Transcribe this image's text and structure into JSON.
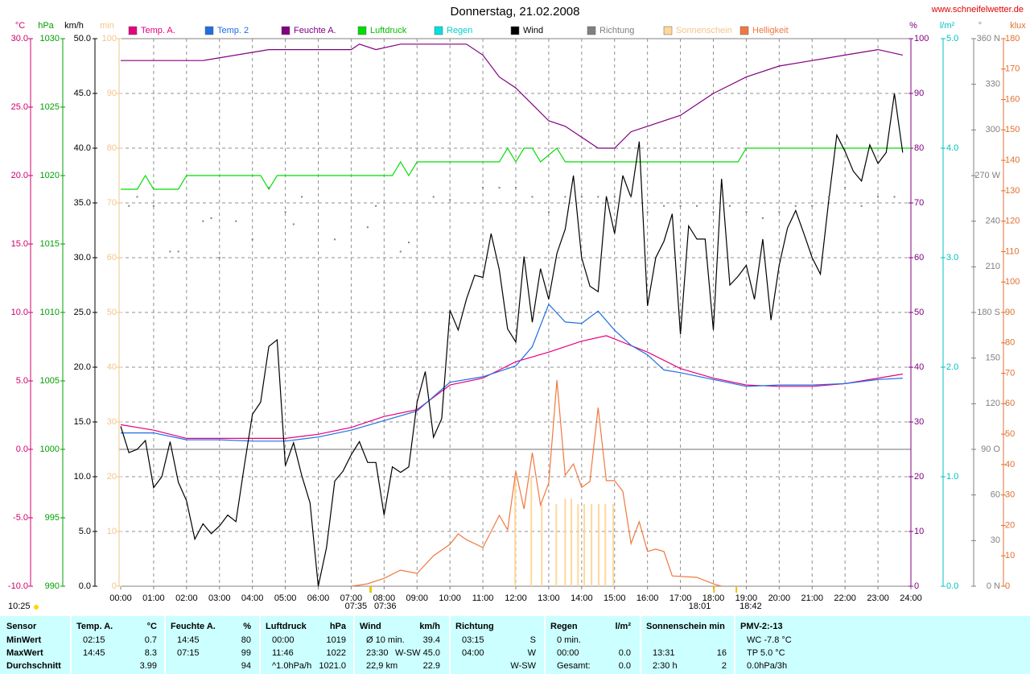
{
  "chart_data": {
    "type": "line",
    "title": "Donnerstag, 21.02.2008",
    "source": "www.schneifelwetter.de",
    "xlim": [
      0,
      24
    ],
    "xticks": [
      {
        "value": 0,
        "label": "00:00"
      },
      {
        "value": 1,
        "label": "01:00"
      },
      {
        "value": 2,
        "label": "02:00"
      },
      {
        "value": 3,
        "label": "03:00"
      },
      {
        "value": 4,
        "label": "04:00"
      },
      {
        "value": 5,
        "label": "05:00"
      },
      {
        "value": 6,
        "label": "06:00"
      },
      {
        "value": 7,
        "label": "07:00"
      },
      {
        "value": 8,
        "label": "08:00"
      },
      {
        "value": 9,
        "label": "09:00"
      },
      {
        "value": 10,
        "label": "10:00"
      },
      {
        "value": 11,
        "label": "11:00"
      },
      {
        "value": 12,
        "label": "12:00"
      },
      {
        "value": 13,
        "label": "13:00"
      },
      {
        "value": 14,
        "label": "14:00"
      },
      {
        "value": 15,
        "label": "15:00"
      },
      {
        "value": 16,
        "label": "16:00"
      },
      {
        "value": 17,
        "label": "17:00"
      },
      {
        "value": 18,
        "label": "18:00"
      },
      {
        "value": 19,
        "label": "19:00"
      },
      {
        "value": 20,
        "label": "20:00"
      },
      {
        "value": 21,
        "label": "21:00"
      },
      {
        "value": 22,
        "label": "22:00"
      },
      {
        "value": 23,
        "label": "23:00"
      },
      {
        "value": 24,
        "label": "24:00"
      }
    ],
    "grid": true,
    "axes": [
      {
        "name": "°C",
        "color": "#d0006f",
        "lim": [
          -10,
          30
        ],
        "ticks": [
          {
            "value": 30,
            "label": "30.0"
          },
          {
            "value": 25,
            "label": "25.0"
          },
          {
            "value": 20,
            "label": "20.0"
          },
          {
            "value": 15,
            "label": "15.0"
          },
          {
            "value": 10,
            "label": "10.0"
          },
          {
            "value": 5,
            "label": "5.0"
          },
          {
            "value": 0,
            "label": "0.0"
          },
          {
            "value": -5,
            "label": "-5.0"
          },
          {
            "value": -10,
            "label": "-10.0"
          }
        ]
      },
      {
        "name": "hPa",
        "color": "#00a000",
        "lim": [
          990,
          1030
        ],
        "ticks": [
          1030,
          1025,
          1020,
          1015,
          1010,
          1005,
          1000,
          995,
          990
        ]
      },
      {
        "name": "km/h",
        "color": "#000000",
        "lim": [
          0,
          50
        ],
        "ticks": [
          {
            "value": 50,
            "label": "50.0"
          },
          {
            "value": 45,
            "label": "45.0"
          },
          {
            "value": 40,
            "label": "40.0"
          },
          {
            "value": 35,
            "label": "35.0"
          },
          {
            "value": 30,
            "label": "30.0"
          },
          {
            "value": 25,
            "label": "25.0"
          },
          {
            "value": 20,
            "label": "20.0"
          },
          {
            "value": 15,
            "label": "15.0"
          },
          {
            "value": 10,
            "label": "10.0"
          },
          {
            "value": 5,
            "label": "5.0"
          },
          {
            "value": 0,
            "label": "0.0"
          }
        ]
      },
      {
        "name": "min",
        "color": "#f2c48a",
        "lim": [
          0,
          100
        ],
        "ticks": [
          100,
          90,
          80,
          70,
          60,
          50,
          40,
          30,
          20,
          10,
          0
        ]
      },
      {
        "name": "%",
        "color": "#800080",
        "lim": [
          0,
          100
        ],
        "ticks": [
          100,
          90,
          80,
          70,
          60,
          50,
          40,
          30,
          20,
          10,
          0
        ]
      },
      {
        "name": "l/m²",
        "color": "#00c0c0",
        "lim": [
          0,
          5
        ],
        "ticks": [
          {
            "value": 5,
            "label": "5.0"
          },
          {
            "value": 4,
            "label": "4.0"
          },
          {
            "value": 3,
            "label": "3.0"
          },
          {
            "value": 2,
            "label": "2.0"
          },
          {
            "value": 1,
            "label": "1.0"
          },
          {
            "value": 0,
            "label": "0.0"
          }
        ]
      },
      {
        "name": "°",
        "color": "#808080",
        "lim": [
          0,
          360
        ],
        "ticks": [
          {
            "value": 360,
            "label": "360 N"
          },
          330,
          300,
          {
            "value": 270,
            "label": "270 W"
          },
          240,
          210,
          {
            "value": 180,
            "label": "180 S"
          },
          150,
          120,
          {
            "value": 90,
            "label": "90 O"
          },
          60,
          30,
          {
            "value": 0,
            "label": "0 N"
          }
        ]
      },
      {
        "name": "klux",
        "color": "#e07030",
        "lim": [
          0,
          180
        ],
        "ticks": [
          180,
          170,
          160,
          150,
          140,
          130,
          120,
          110,
          100,
          90,
          80,
          70,
          60,
          50,
          40,
          30,
          20,
          10,
          0
        ]
      }
    ],
    "series": [
      {
        "name": "Temp. A.",
        "color": "#e6007e",
        "axis": 0,
        "style": "line",
        "x": [
          0,
          1,
          2,
          3,
          4,
          5,
          6,
          7,
          8,
          9,
          10,
          11,
          12,
          13,
          14,
          14.75,
          16,
          17,
          18,
          19,
          20,
          21,
          22,
          23,
          23.75
        ],
        "values": [
          1.8,
          1.4,
          0.8,
          0.8,
          0.8,
          0.8,
          1.1,
          1.6,
          2.4,
          2.9,
          4.7,
          5.2,
          6.4,
          7.1,
          7.9,
          8.3,
          7.1,
          5.9,
          5.2,
          4.7,
          4.6,
          4.6,
          4.8,
          5.2,
          5.5
        ]
      },
      {
        "name": "Temp. 2",
        "color": "#1f6fe0",
        "axis": 0,
        "style": "line",
        "x": [
          0,
          1,
          2,
          3,
          4,
          5,
          6,
          7,
          8,
          9,
          10,
          11,
          12,
          12.5,
          13,
          13.5,
          14,
          14.5,
          15,
          15.5,
          16,
          16.5,
          17,
          18,
          19,
          20,
          21,
          22,
          23,
          23.75
        ],
        "values": [
          1.2,
          1.2,
          0.7,
          0.7,
          0.6,
          0.6,
          0.9,
          1.4,
          2.1,
          2.8,
          4.9,
          5.3,
          6.1,
          7.5,
          10.6,
          9.3,
          9.2,
          10.1,
          8.7,
          7.6,
          6.9,
          5.8,
          5.6,
          5.1,
          4.6,
          4.7,
          4.7,
          4.8,
          5.1,
          5.2
        ]
      },
      {
        "name": "Feuchte A.",
        "color": "#800080",
        "axis": 4,
        "style": "line",
        "x": [
          0,
          2.5,
          4.5,
          7,
          7.25,
          7.75,
          8.5,
          10.5,
          11,
          11.5,
          12,
          12.5,
          13,
          13.5,
          14,
          14.5,
          15,
          15.5,
          16,
          17,
          18,
          19,
          20,
          21,
          22,
          23,
          23.75
        ],
        "values": [
          96,
          96,
          98,
          98,
          99,
          98,
          99,
          99,
          97,
          93,
          91,
          88,
          85,
          84,
          82,
          80,
          80,
          83,
          84,
          86,
          90,
          93,
          95,
          96,
          97,
          98,
          97
        ]
      },
      {
        "name": "Luftdruck",
        "color": "#00dd00",
        "axis": 1,
        "style": "line",
        "x": [
          0,
          0.5,
          0.75,
          1,
          1.75,
          2,
          4.25,
          4.5,
          4.75,
          8.25,
          8.5,
          8.75,
          9,
          11.5,
          11.75,
          12,
          12.25,
          12.5,
          12.75,
          13.25,
          13.5,
          18.75,
          19,
          24
        ],
        "values": [
          1019,
          1019,
          1020,
          1019,
          1019,
          1020,
          1020,
          1019,
          1020,
          1020,
          1021,
          1020,
          1021,
          1021,
          1022,
          1021,
          1022,
          1022,
          1021,
          1022,
          1021,
          1021,
          1022,
          1022
        ]
      },
      {
        "name": "Regen",
        "color": "#00e0e0",
        "axis": 5,
        "style": "line",
        "x": [],
        "values": []
      },
      {
        "name": "Wind",
        "color": "#000000",
        "axis": 2,
        "style": "line",
        "x": [
          0,
          0.25,
          0.5,
          0.75,
          1,
          1.25,
          1.5,
          1.75,
          2,
          2.25,
          2.5,
          2.75,
          3,
          3.25,
          3.5,
          3.75,
          4,
          4.25,
          4.5,
          4.75,
          5,
          5.25,
          5.5,
          5.75,
          6,
          6.25,
          6.5,
          6.75,
          7,
          7.25,
          7.5,
          7.75,
          8,
          8.25,
          8.5,
          8.75,
          9,
          9.25,
          9.5,
          9.75,
          10,
          10.25,
          10.5,
          10.75,
          11,
          11.25,
          11.5,
          11.75,
          12,
          12.25,
          12.5,
          12.75,
          13,
          13.25,
          13.5,
          13.75,
          14,
          14.25,
          14.5,
          14.75,
          15,
          15.25,
          15.5,
          15.75,
          16,
          16.25,
          16.5,
          16.75,
          17,
          17.25,
          17.5,
          17.75,
          18,
          18.25,
          18.5,
          18.75,
          19,
          19.25,
          19.5,
          19.75,
          20,
          20.25,
          20.5,
          20.75,
          21,
          21.25,
          21.5,
          21.75,
          22,
          22.25,
          22.5,
          22.75,
          23,
          23.25,
          23.5,
          23.75
        ],
        "values": [
          14.6,
          12.2,
          12.5,
          13.3,
          9.0,
          10.0,
          13.2,
          9.5,
          7.8,
          4.3,
          5.7,
          4.8,
          5.5,
          6.5,
          5.9,
          10.9,
          15.7,
          16.8,
          21.9,
          22.5,
          11.0,
          13.1,
          10.1,
          7.6,
          0.0,
          3.5,
          9.6,
          10.5,
          12.0,
          13.2,
          11.3,
          11.3,
          6.5,
          10.9,
          10.4,
          10.9,
          16.8,
          19.6,
          13.6,
          15.3,
          25.2,
          23.4,
          26.2,
          28.4,
          28.2,
          32.2,
          28.9,
          23.5,
          22.3,
          30.1,
          24.1,
          29.0,
          26.2,
          30.4,
          32.6,
          37.5,
          30.0,
          27.4,
          26.9,
          35.6,
          32.2,
          37.5,
          35.5,
          40.6,
          25.6,
          30.0,
          31.5,
          34.0,
          23.0,
          32.9,
          31.7,
          31.7,
          23.4,
          37.2,
          27.5,
          28.3,
          29.3,
          26.2,
          31.7,
          24.3,
          29.3,
          32.7,
          34.3,
          32.2,
          30.0,
          28.5,
          35.1,
          41.2,
          39.7,
          37.9,
          37.0,
          40.3,
          38.6,
          39.6,
          45.0,
          39.6
        ]
      },
      {
        "name": "Richtung",
        "color": "#808080",
        "axis": 6,
        "style": "dots",
        "x": [
          0.25,
          0.5,
          1,
          1.5,
          1.75,
          2.5,
          2.75,
          3,
          3.5,
          4,
          4.5,
          5,
          5.25,
          5.5,
          6.5,
          7.5,
          7.75,
          8.5,
          8.75,
          9.5,
          10,
          11,
          11.5,
          12,
          12.5,
          13,
          13.5,
          14,
          14.5,
          15,
          15.5,
          16,
          16.5,
          17,
          17.5,
          18,
          18.5,
          19,
          19.5,
          20,
          20.5,
          21,
          21.5,
          22,
          22.5,
          23,
          23.5
        ],
        "values": [
          250,
          256,
          250,
          220,
          220,
          240,
          242,
          216,
          240,
          228,
          262,
          246,
          238,
          256,
          228,
          236,
          250,
          220,
          226,
          256,
          254,
          262,
          262,
          262,
          256,
          246,
          256,
          256,
          256,
          256,
          256,
          246,
          250,
          250,
          250,
          246,
          250,
          246,
          242,
          246,
          250,
          250,
          256,
          262,
          250,
          256,
          256
        ]
      },
      {
        "name": "Sonnenschein",
        "color": "#ffd79a",
        "axis": 3,
        "style": "bars",
        "x": [
          11.98,
          12.47,
          12.79,
          13.23,
          13.5,
          13.69,
          13.89,
          14.08,
          14.3,
          14.52,
          14.72,
          14.96
        ],
        "values": [
          20,
          20,
          15,
          15,
          16,
          16,
          15,
          15,
          15,
          15,
          15,
          15
        ]
      },
      {
        "name": "Helligkeit",
        "color": "#f07840",
        "axis": 7,
        "style": "line",
        "x": [
          7,
          7.5,
          8,
          8.5,
          9,
          9.5,
          10,
          10.25,
          10.5,
          11,
          11.5,
          11.75,
          12,
          12.25,
          12.5,
          12.75,
          13,
          13.25,
          13.5,
          13.75,
          14,
          14.25,
          14.5,
          14.75,
          15,
          15.25,
          15.5,
          15.75,
          16,
          16.25,
          16.5,
          16.75,
          17.5,
          18,
          18.25
        ],
        "values": [
          0,
          0.8,
          2.6,
          5.3,
          4.2,
          10,
          13.8,
          17.2,
          15.3,
          12.7,
          23.3,
          18.5,
          37.8,
          25.4,
          43.9,
          26.7,
          33.9,
          67.7,
          36.5,
          40.2,
          32.5,
          34.4,
          58.7,
          34.7,
          34.7,
          31.2,
          14,
          21.2,
          11.4,
          12.2,
          11.4,
          3.4,
          2.9,
          0.8,
          0
        ]
      }
    ],
    "day_length": "10:25",
    "sun_times": [
      {
        "text": "07:35",
        "x": 7.58
      },
      {
        "text": "07:36",
        "x": 7.6
      },
      {
        "text": "18:01",
        "x": 18.02
      },
      {
        "text": "18:42",
        "x": 18.7
      }
    ]
  },
  "table": {
    "sensor": "Sensor",
    "row_labels": [
      "MinWert",
      "MaxWert",
      "Durchschnitt"
    ],
    "groups": [
      {
        "title": "Temp. A.",
        "unit": "°C",
        "rows": [
          {
            "l": "02:15",
            "r": "0.7"
          },
          {
            "l": "14:45",
            "r": "8.3"
          },
          {
            "r": "3.99"
          }
        ]
      },
      {
        "title": "Feuchte A.",
        "unit": "%",
        "rows": [
          {
            "l": "14:45",
            "r": "80"
          },
          {
            "l": "07:15",
            "r": "99"
          },
          {
            "r": "94"
          }
        ]
      },
      {
        "title": "Luftdruck",
        "unit": "hPa",
        "rows": [
          {
            "l": "00:00",
            "r": "1019"
          },
          {
            "l": "11:46",
            "r": "1022"
          },
          {
            "l": "^1.0hPa/h",
            "r": "1021.0"
          }
        ]
      },
      {
        "title": "Wind",
        "unit": "km/h",
        "rows": [
          {
            "l": "Ø 10 min.",
            "r": "39.4"
          },
          {
            "l": "23:30",
            "r": "W-SW 45.0"
          },
          {
            "l": "22,9 km",
            "r": "22.9"
          }
        ]
      },
      {
        "title": "Richtung",
        "rows": [
          {
            "l": "03:15",
            "r": "S"
          },
          {
            "l": "04:00",
            "r": "W"
          },
          {
            "r": "W-SW"
          }
        ]
      },
      {
        "title": "Regen",
        "unit": "l/m²",
        "rows": [
          {
            "l": "0 min."
          },
          {
            "l": "00:00",
            "r": "0.0"
          },
          {
            "l": "Gesamt:",
            "r": "0.0"
          }
        ]
      },
      {
        "title": "Sonnenschein min",
        "rows": [
          {},
          {
            "l": "13:31",
            "r": "16"
          },
          {
            "l": "2:30 h",
            "r": "2"
          }
        ]
      },
      {
        "title": "PMV-2:-13",
        "rows": [
          {
            "l": "WC -7.8 °C"
          },
          {
            "l": "TP 5.0 °C"
          },
          {
            "l": "0.0hPa/3h"
          }
        ]
      }
    ]
  }
}
